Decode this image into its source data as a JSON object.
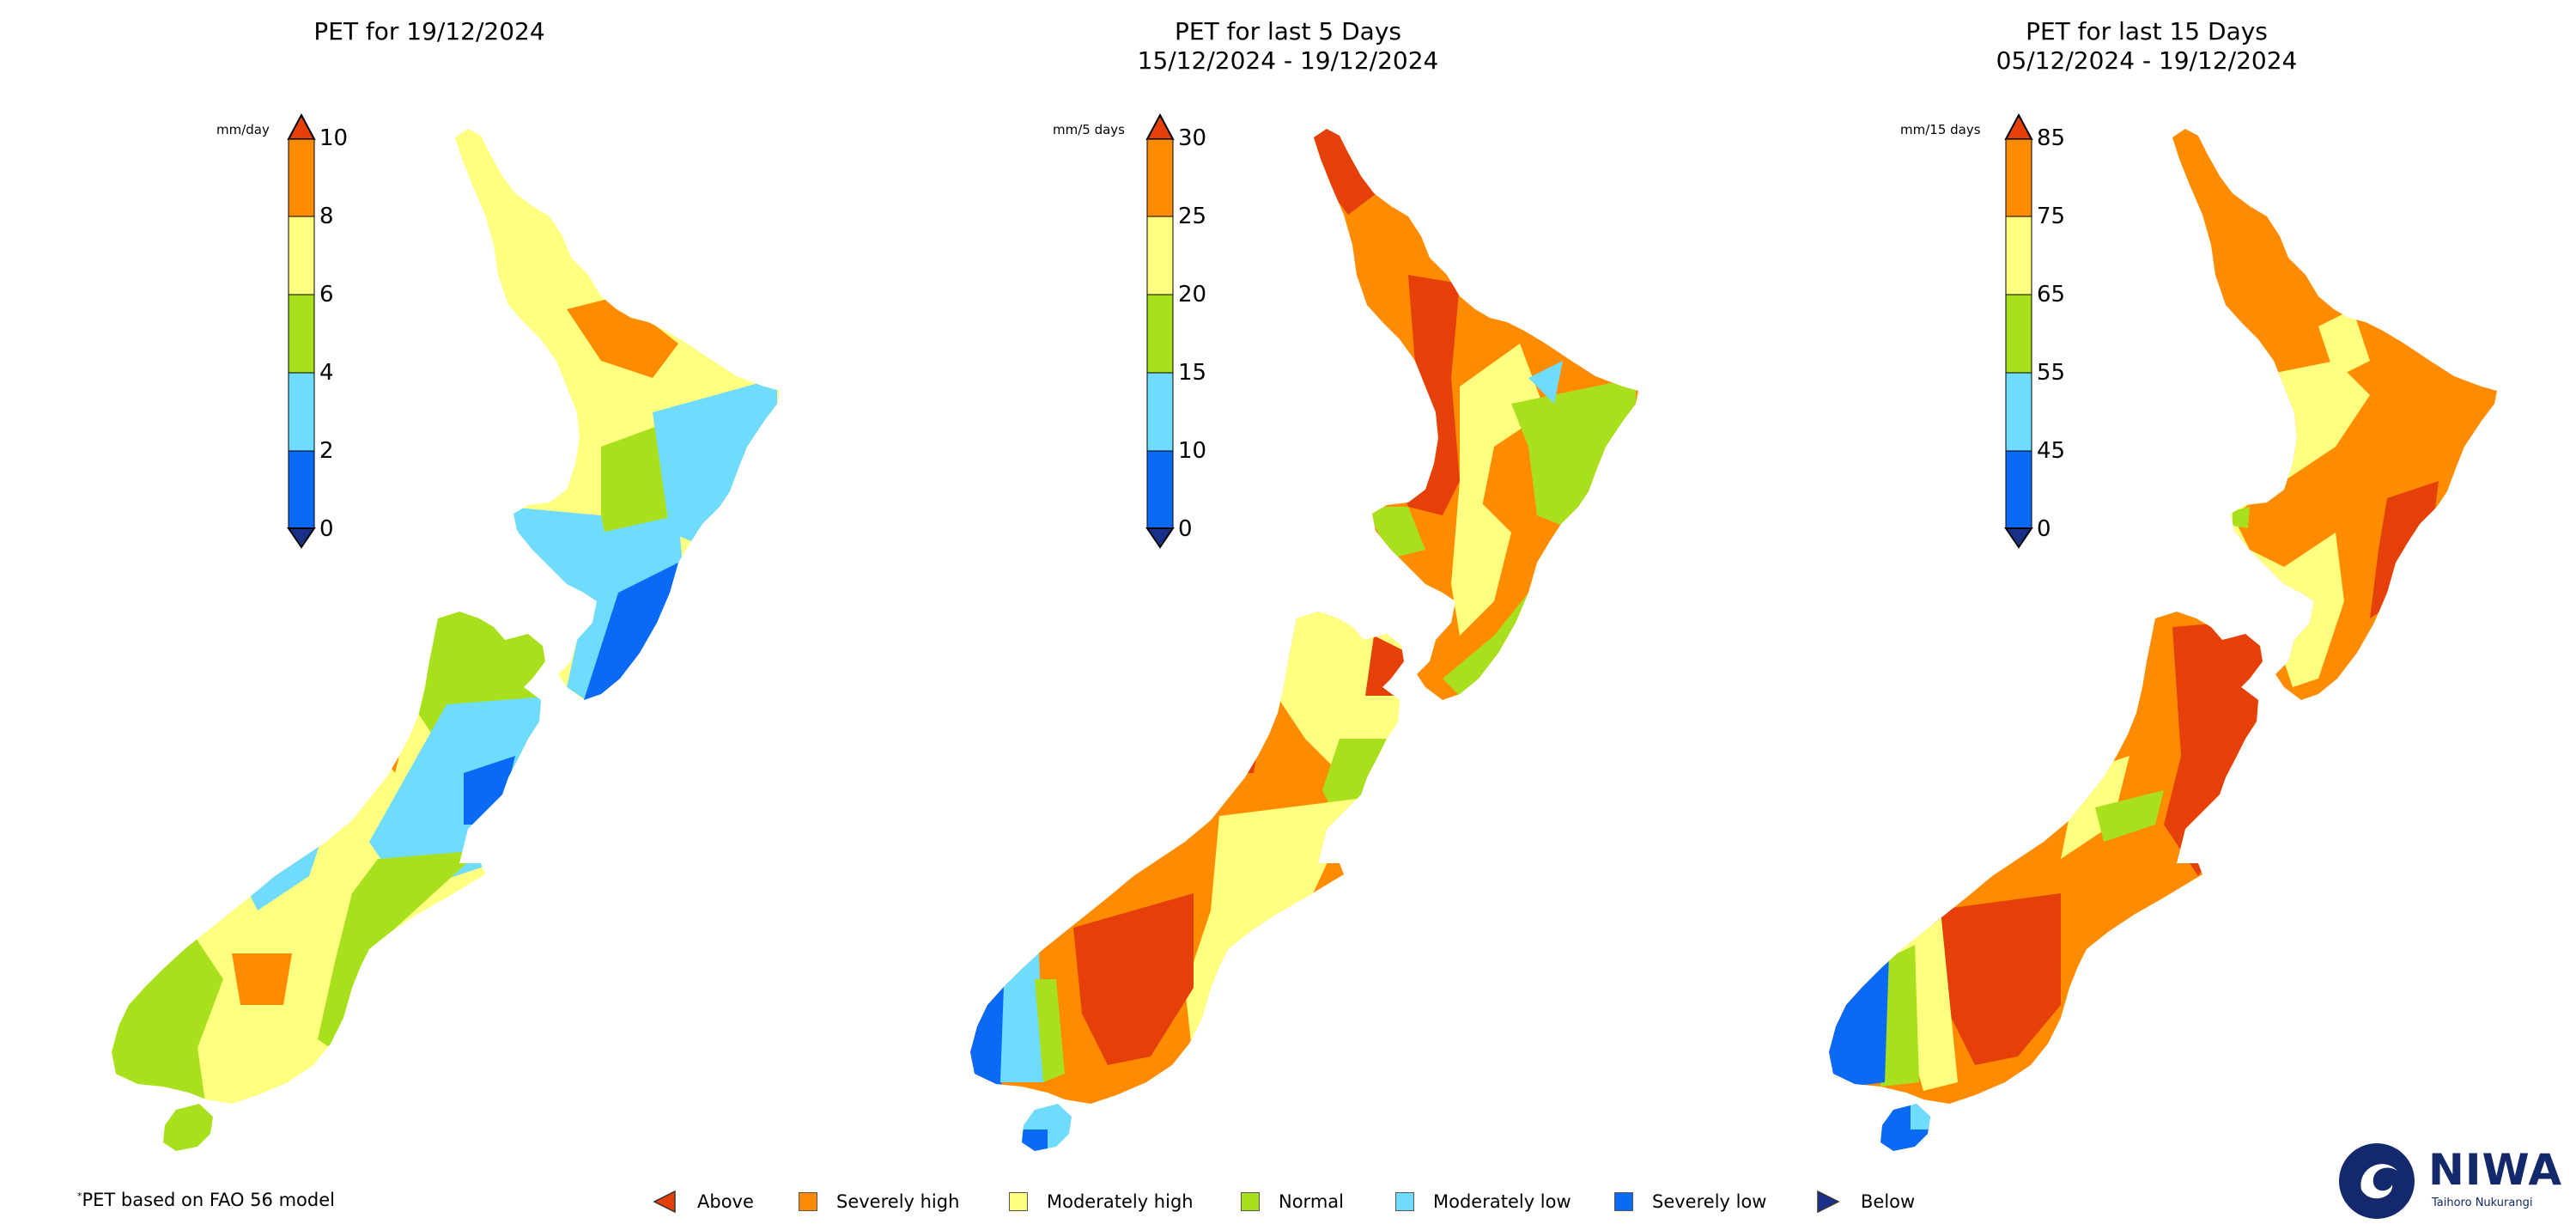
{
  "colors": {
    "above": "#e6400a",
    "severely_high": "#ff8c00",
    "moderately_high": "#ffff80",
    "normal": "#a8e01e",
    "moderately_low": "#6fdcff",
    "severely_low": "#0a6af5",
    "below": "#1a2f8a"
  },
  "panels": [
    {
      "title_line1": "PET for 19/12/2024",
      "title_line2": "",
      "unit": "mm/day",
      "ticks": [
        "10",
        "8",
        "6",
        "4",
        "2",
        "0"
      ]
    },
    {
      "title_line1": "PET for last 5 Days",
      "title_line2": "15/12/2024 - 19/12/2024",
      "unit": "mm/5 days",
      "ticks": [
        "30",
        "25",
        "20",
        "15",
        "10",
        "0"
      ]
    },
    {
      "title_line1": "PET for last 15 Days",
      "title_line2": "05/12/2024 - 19/12/2024",
      "unit": "mm/15 days",
      "ticks": [
        "85",
        "75",
        "65",
        "55",
        "45",
        "0"
      ]
    }
  ],
  "footnote": "PET based on FAO 56 model",
  "footnote_mark": "*",
  "legend": [
    {
      "label": "Above",
      "icon": "triangle-left-icon"
    },
    {
      "label": "Severely high",
      "icon": "square-icon"
    },
    {
      "label": "Moderately high",
      "icon": "square-icon"
    },
    {
      "label": "Normal",
      "icon": "square-icon"
    },
    {
      "label": "Moderately low",
      "icon": "square-icon"
    },
    {
      "label": "Severely low",
      "icon": "square-icon"
    },
    {
      "label": "Below",
      "icon": "triangle-right-icon"
    }
  ],
  "logo": {
    "name": "NIWA",
    "tagline": "Taihoro Nukurangi"
  }
}
